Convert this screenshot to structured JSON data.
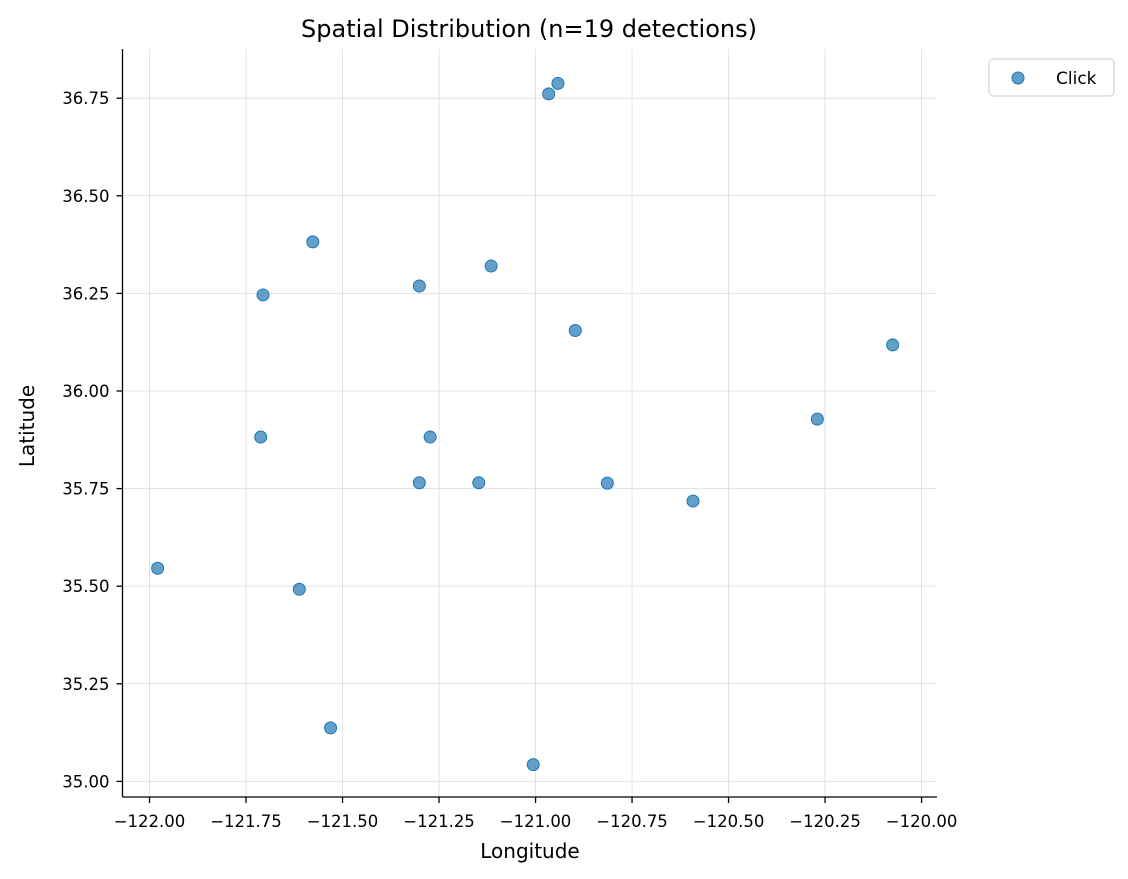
{
  "chart_data": {
    "type": "scatter",
    "title": "Spatial Distribution (n=19 detections)",
    "xlabel": "Longitude",
    "ylabel": "Latitude",
    "xlim": [
      -122.07,
      -119.96
    ],
    "ylim": [
      34.96,
      36.876
    ],
    "xticks": [
      -122.0,
      -121.75,
      -121.5,
      -121.25,
      -121.0,
      -120.75,
      -120.5,
      -120.25,
      -120.0
    ],
    "xtick_labels": [
      "−122.00",
      "−121.75",
      "−121.50",
      "−121.25",
      "−121.00",
      "−120.75",
      "−120.50",
      "−120.25",
      "−120.00"
    ],
    "yticks": [
      35.0,
      35.25,
      35.5,
      35.75,
      36.0,
      36.25,
      36.5,
      36.75
    ],
    "ytick_labels": [
      "35.00",
      "35.25",
      "35.50",
      "35.75",
      "36.00",
      "36.25",
      "36.50",
      "36.75"
    ],
    "grid": true,
    "legend": {
      "placement": "outside-top-right",
      "entries": [
        "Click"
      ]
    },
    "series": [
      {
        "name": "Click",
        "color": "#1f77b4",
        "points": [
          {
            "x": -120.942,
            "y": 36.788
          },
          {
            "x": -120.966,
            "y": 36.761
          },
          {
            "x": -121.577,
            "y": 36.382
          },
          {
            "x": -121.115,
            "y": 36.32
          },
          {
            "x": -121.301,
            "y": 36.269
          },
          {
            "x": -121.706,
            "y": 36.246
          },
          {
            "x": -120.897,
            "y": 36.155
          },
          {
            "x": -120.075,
            "y": 36.118
          },
          {
            "x": -120.27,
            "y": 35.928
          },
          {
            "x": -121.712,
            "y": 35.882
          },
          {
            "x": -121.273,
            "y": 35.882
          },
          {
            "x": -121.301,
            "y": 35.765
          },
          {
            "x": -121.147,
            "y": 35.765
          },
          {
            "x": -120.814,
            "y": 35.764
          },
          {
            "x": -120.592,
            "y": 35.718
          },
          {
            "x": -121.979,
            "y": 35.546
          },
          {
            "x": -121.612,
            "y": 35.492
          },
          {
            "x": -121.531,
            "y": 35.137
          },
          {
            "x": -121.006,
            "y": 35.043
          }
        ]
      }
    ]
  }
}
